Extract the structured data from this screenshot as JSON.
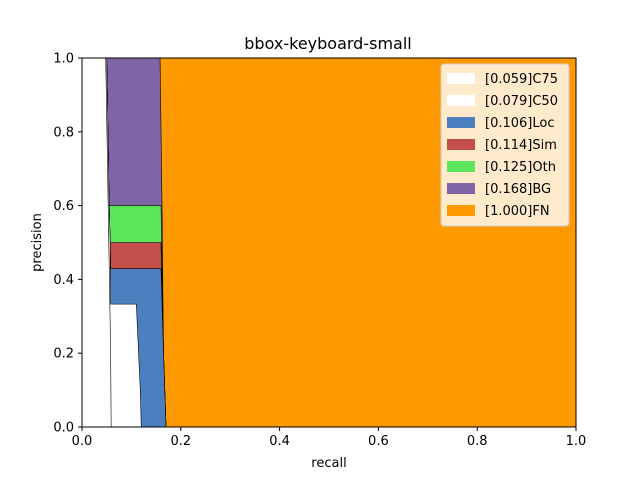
{
  "chart_data": {
    "type": "area",
    "title": "bbox-keyboard-small",
    "xlabel": "recall",
    "ylabel": "precision",
    "xlim": [
      0,
      1
    ],
    "ylim": [
      0,
      1
    ],
    "xticks": [
      "0.0",
      "0.2",
      "0.4",
      "0.6",
      "0.8",
      "1.0"
    ],
    "yticks": [
      "0.0",
      "0.2",
      "0.4",
      "0.6",
      "0.8",
      "1.0"
    ],
    "grid": false,
    "legend_position": "top-right",
    "series": [
      {
        "name": "[0.059]C75",
        "color": "#ffffff",
        "curve": [
          [
            0,
            1
          ],
          [
            0.048,
            1
          ],
          [
            0.058,
            0.2
          ],
          [
            0.059,
            0
          ]
        ]
      },
      {
        "name": "[0.079]C50",
        "color": "#ffffff",
        "curve": [
          [
            0,
            1
          ],
          [
            0.05,
            1
          ],
          [
            0.055,
            0.6
          ],
          [
            0.057,
            0.5
          ],
          [
            0.058,
            0.333
          ],
          [
            0.11,
            0.333
          ],
          [
            0.118,
            0.1
          ],
          [
            0.12,
            0
          ]
        ]
      },
      {
        "name": "[0.106]Loc",
        "color": "#4c7fc0",
        "curve": [
          [
            0,
            1
          ],
          [
            0.05,
            1
          ],
          [
            0.055,
            0.6
          ],
          [
            0.057,
            0.5
          ],
          [
            0.058,
            0.429
          ],
          [
            0.16,
            0.429
          ],
          [
            0.165,
            0.2
          ],
          [
            0.17,
            0
          ]
        ]
      },
      {
        "name": "[0.114]Sim",
        "color": "#c44e4a",
        "curve": [
          [
            0,
            1
          ],
          [
            0.05,
            1
          ],
          [
            0.055,
            0.6
          ],
          [
            0.057,
            0.5
          ],
          [
            0.16,
            0.5
          ],
          [
            0.165,
            0.2
          ],
          [
            0.17,
            0
          ]
        ]
      },
      {
        "name": "[0.125]Oth",
        "color": "#5ce65c",
        "curve": [
          [
            0,
            1
          ],
          [
            0.05,
            1
          ],
          [
            0.055,
            0.6
          ],
          [
            0.16,
            0.6
          ],
          [
            0.165,
            0.2
          ],
          [
            0.17,
            0
          ]
        ]
      },
      {
        "name": "[0.168]BG",
        "color": "#8064a6",
        "curve": [
          [
            0,
            1
          ],
          [
            0.158,
            1
          ],
          [
            0.162,
            0.6
          ],
          [
            0.165,
            0.2
          ],
          [
            0.17,
            0
          ]
        ]
      },
      {
        "name": "[1.000]FN",
        "color": "#ff9900",
        "curve": [
          [
            0,
            1
          ],
          [
            1,
            1
          ],
          [
            1,
            0
          ]
        ]
      }
    ]
  }
}
